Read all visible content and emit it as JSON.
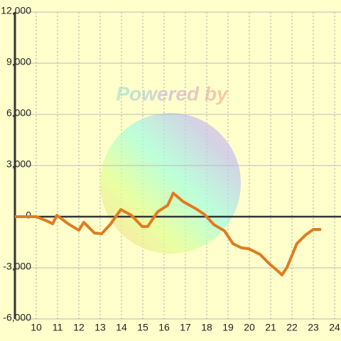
{
  "chart_data": {
    "type": "line",
    "watermark": "Powered by",
    "x": [
      9,
      10,
      10.5,
      10.77,
      10.97,
      11.5,
      12,
      12.23,
      12.73,
      13.07,
      13.47,
      13.97,
      14.47,
      14.97,
      15.23,
      15.7,
      16.17,
      16.43,
      16.9,
      17.5,
      17.9,
      18.33,
      18.83,
      19.23,
      19.63,
      19.97,
      20.5,
      21,
      21.43,
      21.53,
      21.77,
      22.23,
      22.63,
      23,
      23.37
    ],
    "series": [
      {
        "color": "#e07b20",
        "values": [
          0,
          0,
          -250,
          -420,
          80,
          -420,
          -800,
          -330,
          -960,
          -1000,
          -460,
          420,
          80,
          -580,
          -580,
          290,
          670,
          1380,
          880,
          460,
          125,
          -460,
          -830,
          -1580,
          -1830,
          -1880,
          -2210,
          -2830,
          -3290,
          -3420,
          -2960,
          -1580,
          -1080,
          -750,
          -750
        ]
      }
    ],
    "xlim": [
      9,
      24.3
    ],
    "xticks": [
      10,
      11,
      12,
      13,
      14,
      15,
      16,
      17,
      18,
      19,
      20,
      21,
      22,
      23,
      24
    ],
    "ylim": [
      -6000,
      12000
    ],
    "yticks": [
      {
        "value": -6000,
        "label": "-6,000"
      },
      {
        "value": -3000,
        "label": "-3,000"
      },
      0,
      {
        "value": 3000,
        "label": "3,000"
      },
      {
        "value": 6000,
        "label": "6,000"
      },
      {
        "value": 9000,
        "label": "9,000"
      },
      {
        "value": 12000,
        "label": "12,000"
      }
    ],
    "grid": true
  }
}
